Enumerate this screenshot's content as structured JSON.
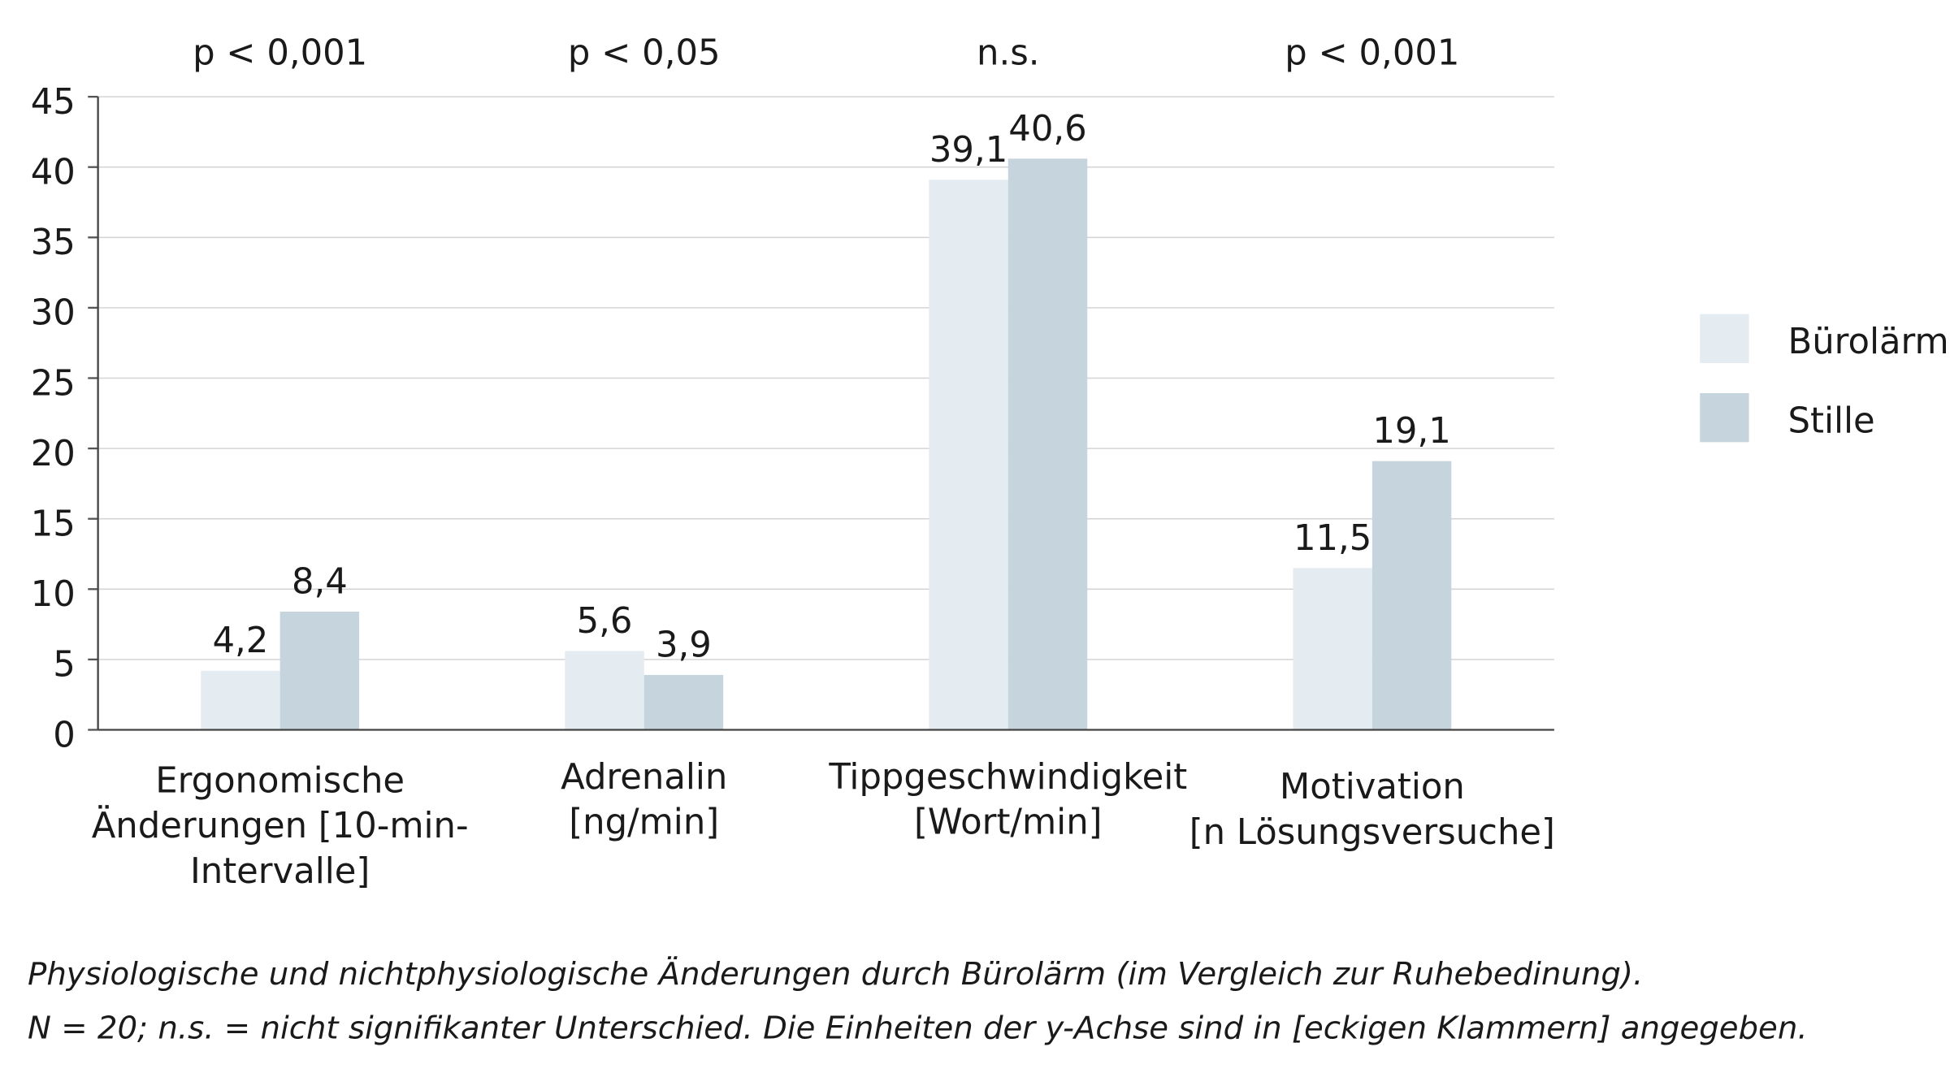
{
  "chart_data": {
    "type": "bar",
    "categories": [
      "Ergonomische\nÄnderungen [10-min-\nIntervalle]",
      "Adrenalin\n[ng/min]",
      "Tippgeschwindigkeit\n[Wort/min]",
      "Motivation\n[n Lösungsversuche]"
    ],
    "significance": [
      "p < 0,001",
      "p < 0,05",
      "n.s.",
      "p < 0,001"
    ],
    "series": [
      {
        "name": "Bürolärm",
        "color": "#e4ebf1",
        "values": [
          4.2,
          5.6,
          39.1,
          11.5
        ],
        "value_labels": [
          "4,2",
          "5,6",
          "39,1",
          "11,5"
        ]
      },
      {
        "name": "Stille",
        "color": "#c5d4dd",
        "values": [
          8.4,
          3.9,
          40.6,
          19.1
        ],
        "value_labels": [
          "8,4",
          "3,9",
          "40,6",
          "19,1"
        ]
      }
    ],
    "ylim": [
      0,
      45
    ],
    "yticks": [
      0,
      5,
      10,
      15,
      20,
      25,
      30,
      35,
      40,
      45
    ],
    "grid": true,
    "legend": "right",
    "caption": [
      "Physiologische und nichtphysiologische Änderungen durch Bürolärm (im Vergleich zur Ruhebedinung).",
      "N = 20; n.s. = nicht signifikanter Unterschied. Die Einheiten der y-Achse sind in [eckigen Klammern] angegeben."
    ]
  }
}
